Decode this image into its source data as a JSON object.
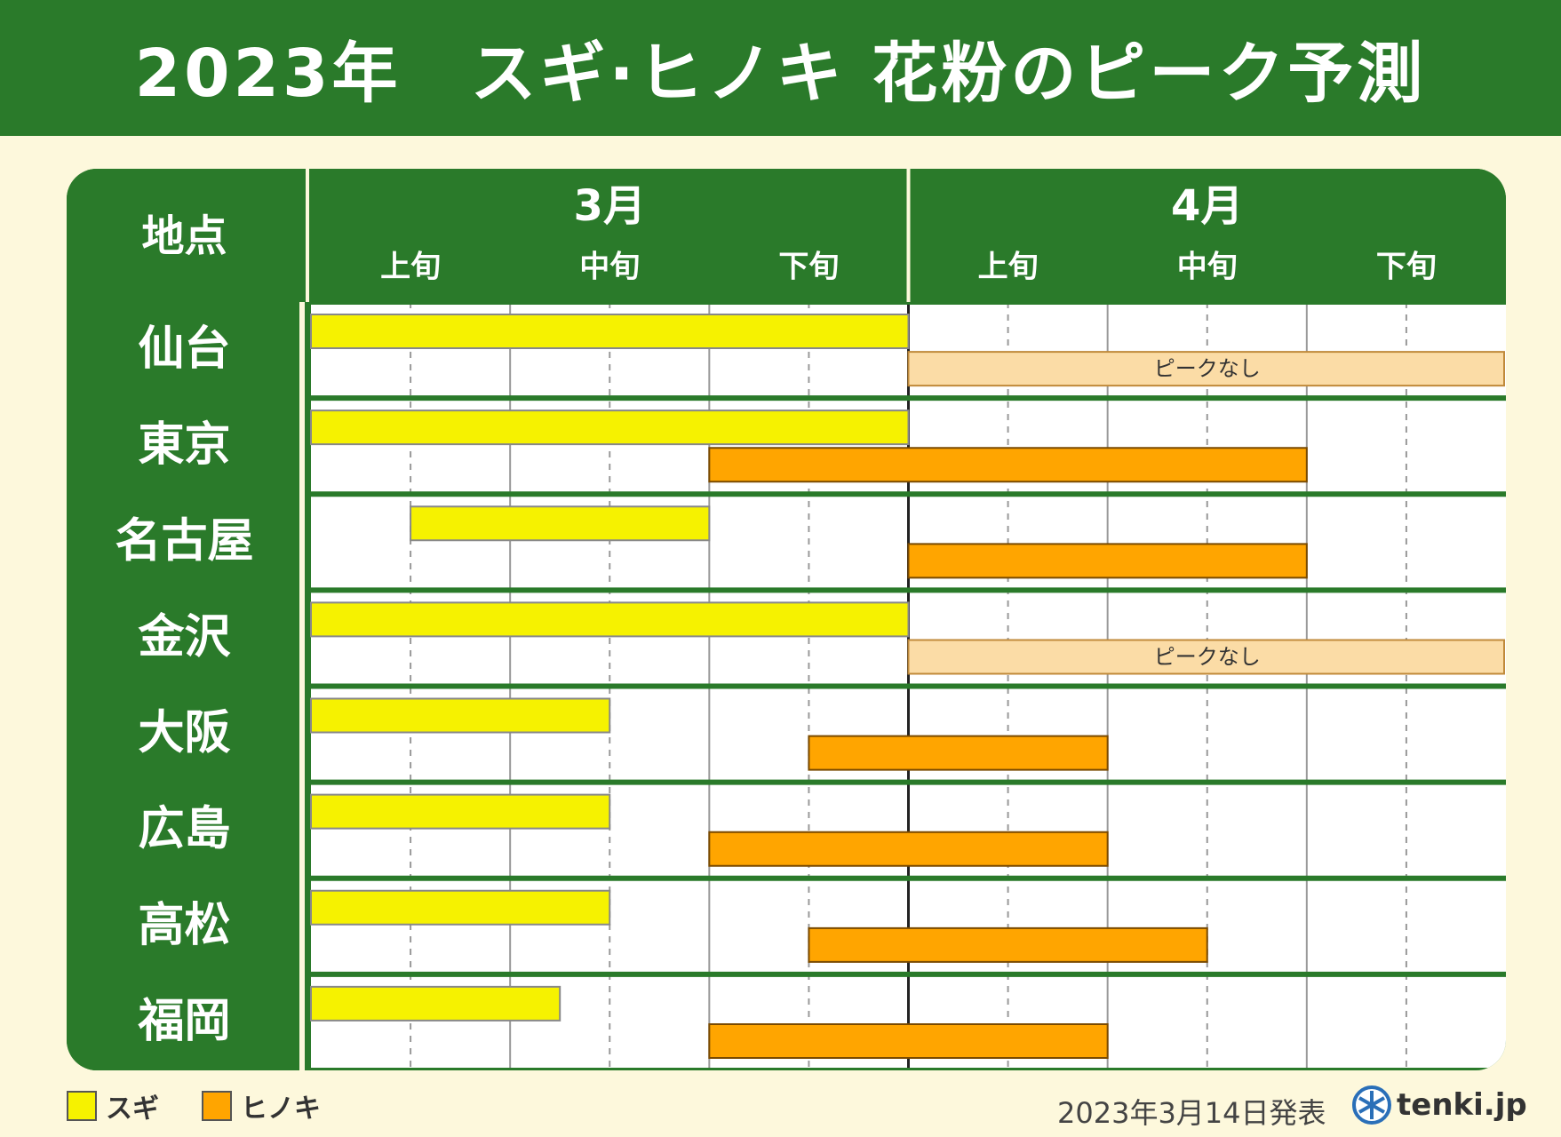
{
  "title": "2023年　スギ·ヒノキ 花粉のピーク予測",
  "colors": {
    "header_green": "#2a7a2a",
    "sugi": "#f6f200",
    "hinoki": "#ffa500",
    "no_peak": "#fbdca6",
    "background": "#fdf8dc"
  },
  "chart_data": {
    "type": "gantt",
    "row_header": "地点",
    "months": [
      {
        "label": "3月",
        "periods": [
          "上旬",
          "中旬",
          "下旬"
        ]
      },
      {
        "label": "4月",
        "periods": [
          "上旬",
          "中旬",
          "下旬"
        ]
      }
    ],
    "x_unit": "half-dekad (March early = 0 … April late = 12)",
    "xlim": [
      0,
      12
    ],
    "no_peak_label": "ピークなし",
    "series_names": [
      "スギ",
      "ヒノキ"
    ],
    "locations": [
      {
        "name": "仙台",
        "sugi": [
          0,
          6
        ],
        "hinoki": null
      },
      {
        "name": "東京",
        "sugi": [
          0,
          6
        ],
        "hinoki": [
          4,
          10
        ]
      },
      {
        "name": "名古屋",
        "sugi": [
          1,
          4
        ],
        "hinoki": [
          6,
          10
        ]
      },
      {
        "name": "金沢",
        "sugi": [
          0,
          6
        ],
        "hinoki": null
      },
      {
        "name": "大阪",
        "sugi": [
          0,
          3
        ],
        "hinoki": [
          5,
          8
        ]
      },
      {
        "name": "広島",
        "sugi": [
          0,
          3
        ],
        "hinoki": [
          4,
          8
        ]
      },
      {
        "name": "高松",
        "sugi": [
          0,
          3
        ],
        "hinoki": [
          5,
          9
        ]
      },
      {
        "name": "福岡",
        "sugi": [
          0,
          2.5
        ],
        "hinoki": [
          4,
          8
        ]
      }
    ]
  },
  "legend": {
    "sugi_label": "スギ",
    "hinoki_label": "ヒノキ"
  },
  "footer": {
    "date": "2023年3月14日発表",
    "brand": "tenki.jp"
  }
}
